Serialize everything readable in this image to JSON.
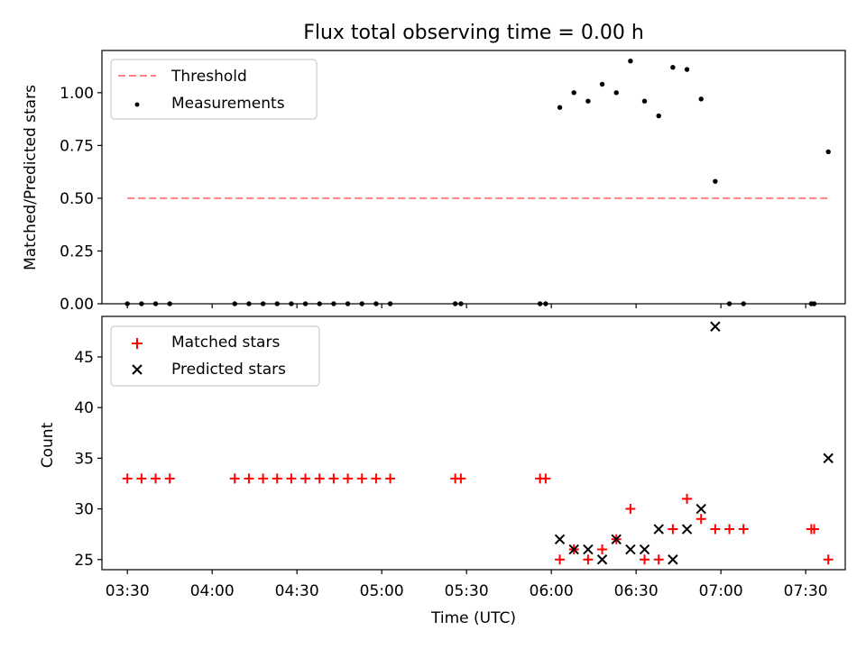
{
  "title": "Flux total observing time = 0.00 h",
  "chart_data": [
    {
      "type": "scatter",
      "title": "Flux total observing time = 0.00 h",
      "ylabel": "Matched/Predicted stars",
      "xlim": [
        "03:21",
        "07:44"
      ],
      "ylim": [
        0,
        1.2
      ],
      "yticks": [
        0.0,
        0.25,
        0.5,
        0.75,
        1.0
      ],
      "ytick_labels": [
        "0.00",
        "0.25",
        "0.50",
        "0.75",
        "1.00"
      ],
      "legend_position": "top-left",
      "series": [
        {
          "name": "Threshold",
          "kind": "dashed-line",
          "color": "#ff8080",
          "x": [
            "03:30",
            "07:38"
          ],
          "y": [
            0.5,
            0.5
          ]
        },
        {
          "name": "Measurements",
          "kind": "points",
          "color": "#000000",
          "x": [
            "03:30",
            "03:35",
            "03:40",
            "03:45",
            "04:08",
            "04:13",
            "04:18",
            "04:23",
            "04:28",
            "04:33",
            "04:38",
            "04:43",
            "04:48",
            "04:53",
            "04:58",
            "05:03",
            "05:26",
            "05:28",
            "05:56",
            "05:58",
            "06:03",
            "06:08",
            "06:13",
            "06:18",
            "06:23",
            "06:28",
            "06:33",
            "06:38",
            "06:43",
            "06:48",
            "06:53",
            "06:58",
            "07:03",
            "07:08",
            "07:32",
            "07:33",
            "07:38"
          ],
          "y": [
            0,
            0,
            0,
            0,
            0,
            0,
            0,
            0,
            0,
            0,
            0,
            0,
            0,
            0,
            0,
            0,
            0,
            0,
            0,
            0,
            0.93,
            1.0,
            0.96,
            1.04,
            1.0,
            1.15,
            0.96,
            0.89,
            1.12,
            1.11,
            0.97,
            0.58,
            0,
            0,
            0,
            0,
            0.72
          ]
        }
      ]
    },
    {
      "type": "scatter",
      "xlabel": "Time (UTC)",
      "ylabel": "Count",
      "xlim": [
        "03:21",
        "07:44"
      ],
      "ylim": [
        24,
        49
      ],
      "yticks": [
        25,
        30,
        35,
        40,
        45
      ],
      "xticks": [
        "03:30",
        "04:00",
        "04:30",
        "05:00",
        "05:30",
        "06:00",
        "06:30",
        "07:00",
        "07:30"
      ],
      "legend_position": "top-left",
      "series": [
        {
          "name": "Matched stars",
          "marker": "plus",
          "color": "#ff0000",
          "x": [
            "03:30",
            "03:35",
            "03:40",
            "03:45",
            "04:08",
            "04:13",
            "04:18",
            "04:23",
            "04:28",
            "04:33",
            "04:38",
            "04:43",
            "04:48",
            "04:53",
            "04:58",
            "05:03",
            "05:26",
            "05:28",
            "05:56",
            "05:58",
            "06:03",
            "06:08",
            "06:13",
            "06:18",
            "06:23",
            "06:28",
            "06:33",
            "06:38",
            "06:43",
            "06:48",
            "06:53",
            "06:58",
            "07:03",
            "07:08",
            "07:32",
            "07:33",
            "07:38"
          ],
          "y": [
            33,
            33,
            33,
            33,
            33,
            33,
            33,
            33,
            33,
            33,
            33,
            33,
            33,
            33,
            33,
            33,
            33,
            33,
            33,
            33,
            25,
            26,
            25,
            26,
            27,
            30,
            25,
            25,
            28,
            31,
            29,
            28,
            28,
            28,
            28,
            28,
            25
          ]
        },
        {
          "name": "Predicted stars",
          "marker": "x",
          "color": "#000000",
          "x": [
            "06:03",
            "06:08",
            "06:13",
            "06:18",
            "06:23",
            "06:28",
            "06:33",
            "06:38",
            "06:43",
            "06:48",
            "06:53",
            "06:58",
            "07:38"
          ],
          "y": [
            27,
            26,
            26,
            25,
            27,
            26,
            26,
            28,
            25,
            28,
            30,
            48,
            35
          ]
        }
      ]
    }
  ]
}
